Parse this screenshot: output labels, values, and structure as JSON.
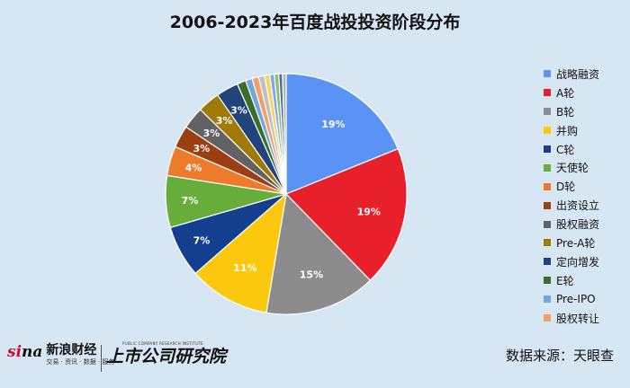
{
  "chart_data": {
    "type": "pie",
    "title": "2006-2023年百度战投投资阶段分布",
    "legend_position": "right",
    "slices": [
      {
        "label": "战略融资",
        "value": 19,
        "display": "19%",
        "color": "#5b92f5"
      },
      {
        "label": "A轮",
        "value": 19,
        "display": "19%",
        "color": "#e8202b"
      },
      {
        "label": "B轮",
        "value": 15,
        "display": "15%",
        "color": "#8c8c8c"
      },
      {
        "label": "并购",
        "value": 11,
        "display": "11%",
        "color": "#fbc80e"
      },
      {
        "label": "C轮",
        "value": 7,
        "display": "7%",
        "color": "#133f8e"
      },
      {
        "label": "天使轮",
        "value": 7,
        "display": "7%",
        "color": "#66ad3c"
      },
      {
        "label": "D轮",
        "value": 4,
        "display": "4%",
        "color": "#ee7a2c"
      },
      {
        "label": "出资设立",
        "value": 3,
        "display": "3%",
        "color": "#9b3e12"
      },
      {
        "label": "股权融资",
        "value": 3,
        "display": "3%",
        "color": "#626262"
      },
      {
        "label": "Pre-A轮",
        "value": 3,
        "display": "3%",
        "color": "#a07a07"
      },
      {
        "label": "定向增发",
        "value": 3,
        "display": "3%",
        "color": "#22447c"
      },
      {
        "label": "E轮",
        "value": 1.2,
        "display": "",
        "color": "#3b6e2b"
      },
      {
        "label": "Pre-IPO",
        "value": 0.9,
        "display": "",
        "color": "#6fa8dc"
      },
      {
        "label": "股权转让",
        "value": 0.9,
        "display": "",
        "color": "#f4a06a"
      },
      {
        "label": "",
        "value": 0.8,
        "display": "",
        "color": "#c0c0c0"
      },
      {
        "label": "",
        "value": 0.7,
        "display": "",
        "color": "#f7d36b"
      },
      {
        "label": "",
        "value": 0.6,
        "display": "",
        "color": "#7fa9e0"
      },
      {
        "label": "",
        "value": 0.6,
        "display": "",
        "color": "#8fc07a"
      },
      {
        "label": "",
        "value": 0.5,
        "display": "",
        "color": "#4f6f9f"
      },
      {
        "label": "",
        "value": 0.5,
        "display": "",
        "color": "#b5b5b5"
      }
    ]
  },
  "footer": {
    "source": "数据来源：天眼查",
    "sina_mark": "si",
    "sina_mark_tail": "na",
    "sina_title": "新浪财经",
    "sina_sub": "交易 · 资讯 · 数据 · 服务",
    "institute_name": "上市公司研究院",
    "institute_en": "PUBLIC COMPANY RESEARCH INSTITUTE"
  }
}
